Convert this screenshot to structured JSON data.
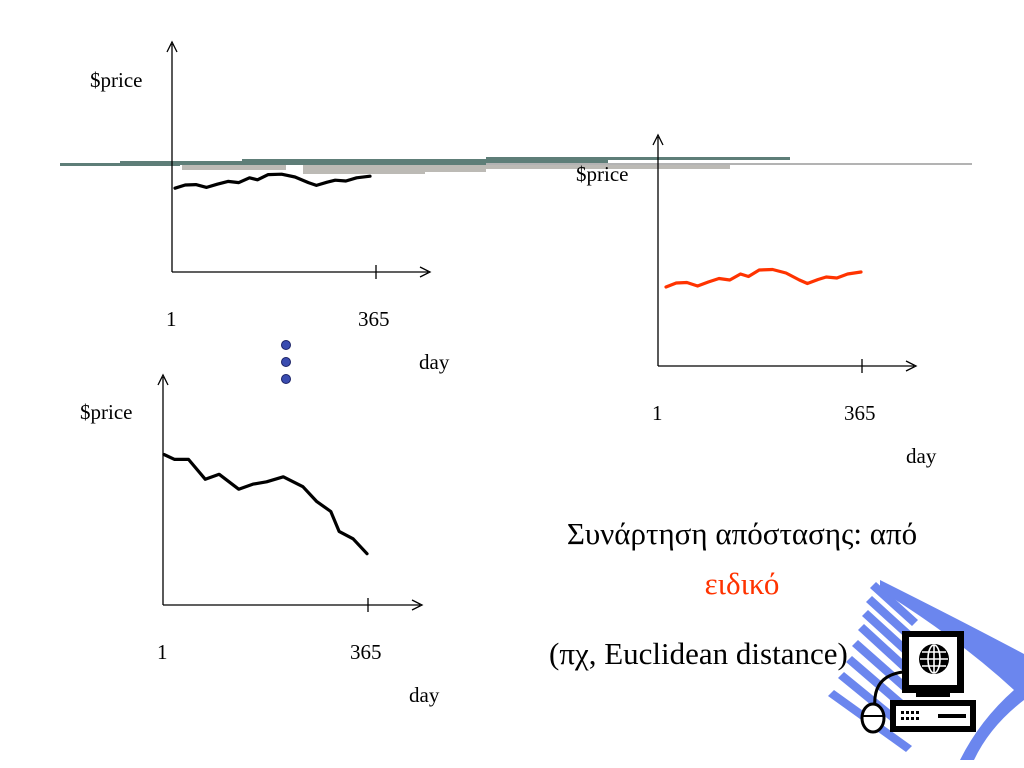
{
  "charts": [
    {
      "y_label": "$price",
      "x_label": "day",
      "x_start": "1",
      "x_end": "365",
      "line_color": "#000000"
    },
    {
      "y_label": "$price",
      "x_label": "day",
      "x_start": "1",
      "x_end": "365",
      "line_color": "#ff3300"
    },
    {
      "y_label": "$price",
      "x_label": "day",
      "x_start": "1",
      "x_end": "365",
      "line_color": "#000000"
    }
  ],
  "caption": {
    "line1": "Συνάρτηση απόστασης: από",
    "line2": "ειδικό",
    "line3": "(πχ, Euclidean distance)",
    "accent_color": "#ff3300"
  },
  "chart_data": [
    {
      "type": "line",
      "xlabel": "day",
      "ylabel": "$price",
      "x_ticks": [
        "1",
        "365"
      ],
      "series": [
        {
          "values": [
            [
              1,
              22
            ],
            [
              20,
              30
            ],
            [
              40,
              31
            ],
            [
              60,
              24
            ],
            [
              80,
              32
            ],
            [
              100,
              39
            ],
            [
              120,
              36
            ],
            [
              140,
              48
            ],
            [
              155,
              43
            ],
            [
              175,
              56
            ],
            [
              200,
              57
            ],
            [
              225,
              50
            ],
            [
              250,
              36
            ],
            [
              265,
              29
            ],
            [
              285,
              37
            ],
            [
              300,
              42
            ],
            [
              320,
              40
            ],
            [
              340,
              48
            ],
            [
              365,
              52
            ]
          ]
        }
      ]
    },
    {
      "type": "line",
      "xlabel": "day",
      "ylabel": "$price",
      "x_ticks": [
        "1",
        "365"
      ],
      "series": [
        {
          "values": [
            [
              1,
              22
            ],
            [
              20,
              30
            ],
            [
              40,
              31
            ],
            [
              60,
              24
            ],
            [
              80,
              32
            ],
            [
              100,
              39
            ],
            [
              120,
              36
            ],
            [
              140,
              48
            ],
            [
              155,
              43
            ],
            [
              175,
              56
            ],
            [
              200,
              57
            ],
            [
              225,
              50
            ],
            [
              250,
              36
            ],
            [
              265,
              29
            ],
            [
              285,
              37
            ],
            [
              300,
              42
            ],
            [
              320,
              40
            ],
            [
              340,
              48
            ],
            [
              365,
              52
            ]
          ]
        }
      ]
    },
    {
      "type": "line",
      "xlabel": "day",
      "ylabel": "$price",
      "x_ticks": [
        "1",
        "365"
      ],
      "series": [
        {
          "values": [
            [
              1,
              98
            ],
            [
              20,
              94
            ],
            [
              45,
              94
            ],
            [
              75,
              78
            ],
            [
              100,
              82
            ],
            [
              135,
              70
            ],
            [
              160,
              74
            ],
            [
              185,
              76
            ],
            [
              215,
              80
            ],
            [
              250,
              72
            ],
            [
              275,
              60
            ],
            [
              300,
              52
            ],
            [
              315,
              36
            ],
            [
              340,
              30
            ],
            [
              365,
              18
            ]
          ]
        }
      ]
    }
  ]
}
